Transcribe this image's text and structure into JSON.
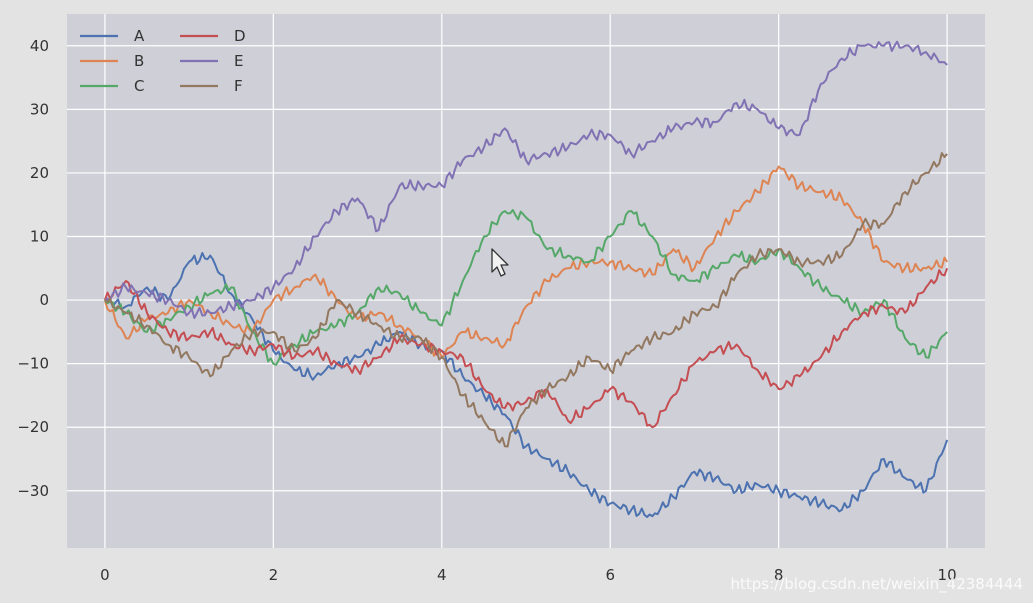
{
  "chart_data": {
    "type": "line",
    "title": "",
    "xlabel": "",
    "ylabel": "",
    "xlim": [
      -0.45,
      10.45
    ],
    "ylim": [
      -39,
      45
    ],
    "xticks": [
      0,
      2,
      4,
      6,
      8,
      10
    ],
    "yticks": [
      -30,
      -20,
      -10,
      0,
      10,
      20,
      30,
      40
    ],
    "grid": true,
    "legend": {
      "position": "top-left",
      "columns": 2
    },
    "x": [
      0,
      0.25,
      0.5,
      0.75,
      1.0,
      1.25,
      1.5,
      1.75,
      2.0,
      2.25,
      2.5,
      2.75,
      3.0,
      3.25,
      3.5,
      3.75,
      4.0,
      4.25,
      4.5,
      4.75,
      5.0,
      5.25,
      5.5,
      5.75,
      6.0,
      6.25,
      6.5,
      6.75,
      7.0,
      7.25,
      7.5,
      7.75,
      8.0,
      8.25,
      8.5,
      8.75,
      9.0,
      9.25,
      9.5,
      9.75,
      10.0
    ],
    "series": [
      {
        "name": "A",
        "color": "#4c72b0",
        "values": [
          0,
          -1,
          2,
          0,
          6,
          7,
          1,
          -3,
          -8,
          -11,
          -12,
          -10,
          -9,
          -7,
          -5,
          -7,
          -8,
          -12,
          -15,
          -18,
          -23,
          -25,
          -27,
          -30,
          -32,
          -33,
          -34,
          -31,
          -27,
          -28,
          -30,
          -29,
          -30,
          -31,
          -32,
          -33,
          -30,
          -25,
          -28,
          -30,
          -22
        ]
      },
      {
        "name": "B",
        "color": "#dd8452",
        "values": [
          0,
          -6,
          -3,
          -2,
          0,
          -2,
          -4,
          -5,
          0,
          2,
          4,
          0,
          -3,
          -2,
          -4,
          -6,
          -9,
          -5,
          -6,
          -7,
          -1,
          3,
          5,
          6,
          6,
          5,
          4,
          8,
          5,
          10,
          14,
          17,
          21,
          18,
          17,
          16,
          12,
          6,
          5,
          5,
          6
        ]
      },
      {
        "name": "C",
        "color": "#55a868",
        "values": [
          0,
          -2,
          -5,
          -3,
          -1,
          1,
          2,
          -5,
          -10,
          -7,
          -5,
          -4,
          -2,
          2,
          1,
          -2,
          -4,
          3,
          10,
          14,
          13,
          8,
          7,
          6,
          10,
          14,
          10,
          4,
          3,
          5,
          7,
          6,
          8,
          5,
          2,
          0,
          -2,
          0,
          -6,
          -9,
          -5
        ]
      },
      {
        "name": "D",
        "color": "#c44e52",
        "values": [
          0,
          3,
          -2,
          -5,
          -6,
          -5,
          -7,
          -8,
          -7,
          -9,
          -8,
          -10,
          -11,
          -9,
          -6,
          -7,
          -8,
          -9,
          -14,
          -17,
          -16,
          -14,
          -19,
          -17,
          -14,
          -16,
          -20,
          -15,
          -10,
          -8,
          -7,
          -11,
          -14,
          -12,
          -9,
          -5,
          -2,
          -1,
          -2,
          2,
          5
        ]
      },
      {
        "name": "E",
        "color": "#8172b3",
        "values": [
          0,
          2,
          1,
          0,
          -2,
          -2,
          -1,
          0,
          2,
          5,
          10,
          14,
          16,
          11,
          18,
          18,
          18,
          22,
          24,
          27,
          22,
          23,
          24,
          26,
          26,
          23,
          25,
          27,
          28,
          28,
          31,
          30,
          27,
          26,
          34,
          38,
          40,
          40,
          40,
          39,
          37
        ]
      },
      {
        "name": "F",
        "color": "#937860",
        "values": [
          0,
          -2,
          -4,
          -7,
          -9,
          -12,
          -8,
          -5,
          -5,
          -8,
          -6,
          0,
          -2,
          -4,
          -6,
          -6,
          -9,
          -15,
          -19,
          -23,
          -17,
          -14,
          -12,
          -9,
          -11,
          -8,
          -6,
          -5,
          -2,
          -1,
          4,
          7,
          8,
          6,
          6,
          7,
          12,
          12,
          17,
          20,
          23
        ]
      }
    ]
  },
  "watermark": "https://blog.csdn.net/weixin_42384444"
}
